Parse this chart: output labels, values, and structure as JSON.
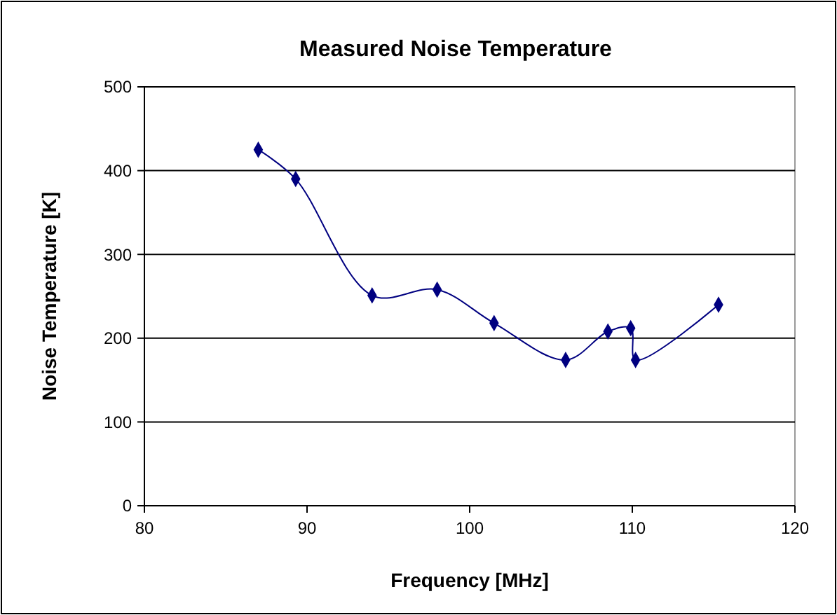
{
  "chart_data": {
    "type": "line",
    "title": "Measured Noise Temperature",
    "xlabel": "Frequency [MHz]",
    "ylabel": "Noise Temperature [K]",
    "x": [
      87.0,
      89.3,
      94.0,
      98.0,
      101.5,
      105.9,
      108.5,
      109.9,
      110.2,
      115.3
    ],
    "series": [
      {
        "color": "#000080",
        "values": [
          425,
          390,
          251,
          258,
          218,
          174,
          208,
          212,
          174,
          240
        ]
      }
    ],
    "xlim": [
      80,
      120
    ],
    "xticks": [
      80,
      90,
      100,
      110,
      120
    ],
    "ylim": [
      0,
      500
    ],
    "yticks": [
      0,
      100,
      200,
      300,
      400,
      500
    ],
    "grid": "y",
    "marker": "diamond",
    "line_style": "solid"
  }
}
